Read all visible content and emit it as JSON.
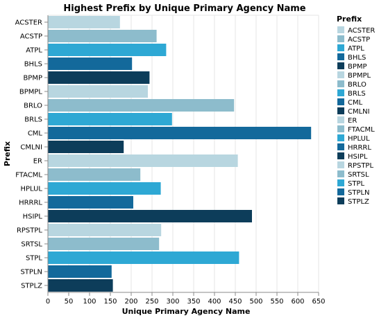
{
  "chart_data": {
    "type": "bar",
    "orientation": "horizontal",
    "title": "Highest Prefix by Unique Primary Agency Name",
    "xlabel": "Unique Primary Agency Name",
    "ylabel": "Prefix",
    "xlim": [
      0,
      650
    ],
    "x_ticks": [
      0,
      50,
      100,
      150,
      200,
      250,
      300,
      350,
      400,
      450,
      500,
      550,
      600,
      650
    ],
    "grid": true,
    "legend": {
      "title": "Prefix",
      "position": "right"
    },
    "categories": [
      "ACSTER",
      "ACSTP",
      "ATPL",
      "BHLS",
      "BPMP",
      "BPMPL",
      "BRLO",
      "BRLS",
      "CML",
      "CMLNI",
      "ER",
      "FTACML",
      "HPLUL",
      "HRRRL",
      "HSIPL",
      "RPSTPL",
      "SRTSL",
      "STPL",
      "STPLN",
      "STPLZ"
    ],
    "values": [
      173,
      261,
      284,
      202,
      244,
      240,
      447,
      298,
      632,
      182,
      456,
      222,
      271,
      205,
      490,
      272,
      267,
      459,
      153,
      156
    ],
    "palette": [
      "#b8d6e0",
      "#8dbccc",
      "#2ea8d4",
      "#13699b",
      "#0d3d5a"
    ]
  }
}
